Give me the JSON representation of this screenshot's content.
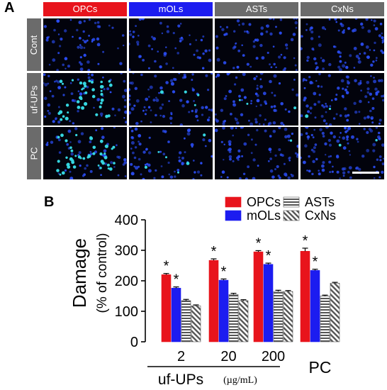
{
  "panel_a": {
    "letter": "A",
    "columns": [
      {
        "label": "OPCs",
        "color": "#e8141c"
      },
      {
        "label": "mOLs",
        "color": "#1c1cf0"
      },
      {
        "label": "ASTs",
        "color": "#6b6b6b"
      },
      {
        "label": "CxNs",
        "color": "#6b6b6b"
      }
    ],
    "rows": [
      "Cont",
      "uf-UPs",
      "PC"
    ],
    "nucleus_color": "#2a4cf2",
    "damage_color": "#35d6e0"
  },
  "panel_b": {
    "letter": "B"
  },
  "chart_data": {
    "type": "bar",
    "ylabel": "Damage",
    "ylabel_sub": "(% of control)",
    "ylim": [
      0,
      400
    ],
    "yticks": [
      "0",
      "100",
      "200",
      "300",
      "400"
    ],
    "categories": [
      "2",
      "20",
      "200",
      "PC"
    ],
    "group_label": "uf-UPs",
    "group_unit": "(µg/mL)",
    "series": [
      {
        "name": "OPCs",
        "values": [
          220,
          267,
          295,
          297
        ],
        "errors": [
          4,
          5,
          4,
          10
        ],
        "color": "#e8141c",
        "pattern": "solid"
      },
      {
        "name": "mOLs",
        "values": [
          176,
          202,
          254,
          234
        ],
        "errors": [
          4,
          4,
          4,
          4
        ],
        "color": "#1c1cf0",
        "pattern": "solid"
      },
      {
        "name": "ASTs",
        "values": [
          135,
          155,
          165,
          150
        ],
        "errors": [
          4,
          4,
          4,
          3
        ],
        "color": "#555555",
        "pattern": "horizontal-stripes"
      },
      {
        "name": "CxNs",
        "values": [
          118,
          135,
          165,
          192
        ],
        "errors": [
          3,
          3,
          3,
          3
        ],
        "color": "#555555",
        "pattern": "diagonal-stripes"
      }
    ],
    "significance": [
      [
        true,
        true,
        false,
        false
      ],
      [
        true,
        true,
        false,
        false
      ],
      [
        true,
        true,
        false,
        false
      ],
      [
        true,
        true,
        false,
        false
      ]
    ],
    "significance_mark": "*",
    "legend_position": "top-right",
    "grid": false
  }
}
